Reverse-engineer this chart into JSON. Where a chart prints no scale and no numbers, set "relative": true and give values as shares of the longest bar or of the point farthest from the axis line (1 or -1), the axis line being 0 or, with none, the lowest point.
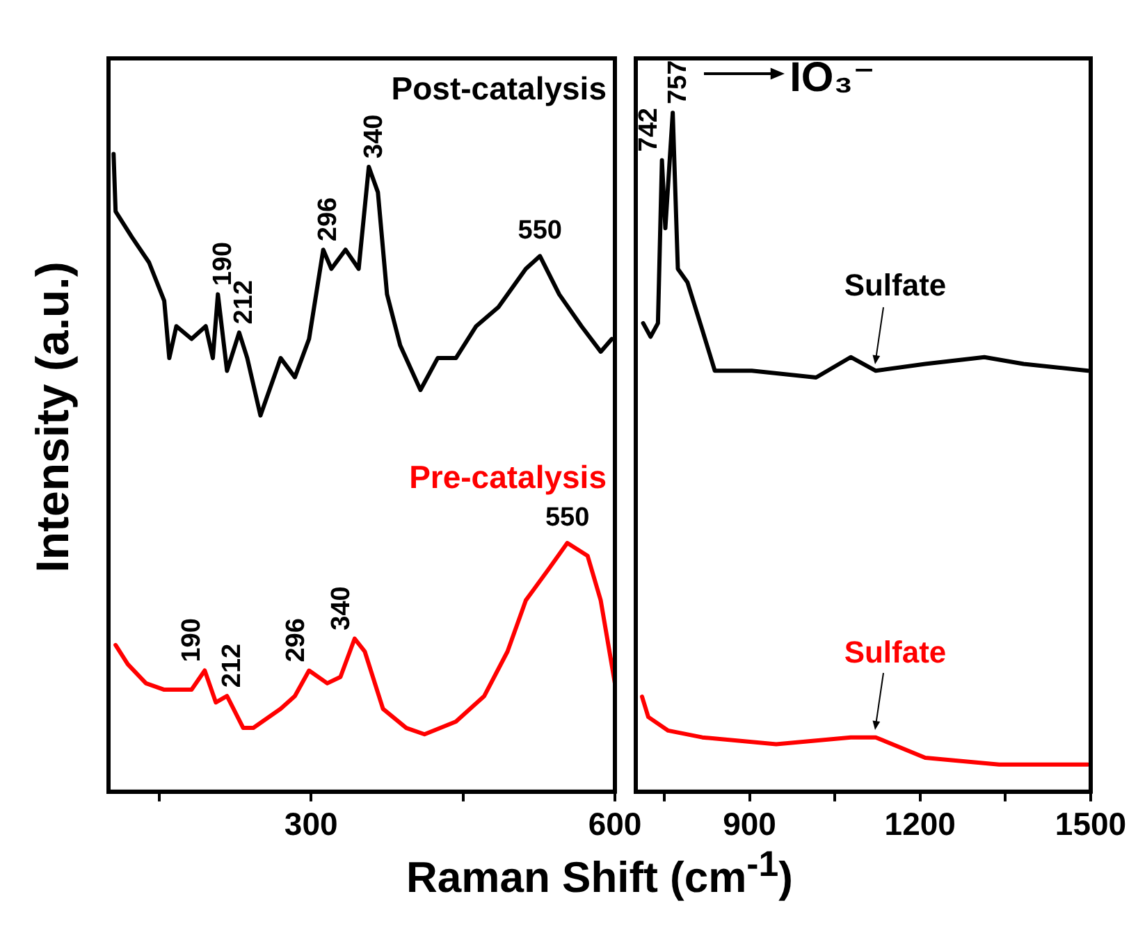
{
  "chart_data": [
    {
      "type": "line",
      "relative": true,
      "xlabel": "Raman Shift (cm$^{-1}$)",
      "ylabel": "Intensity (a.u.)",
      "xlim": [
        100,
        600
      ],
      "xticks": [
        {
          "value": 150,
          "label": null
        },
        300,
        {
          "value": 450,
          "label": null
        },
        600
      ],
      "series": [
        {
          "name": "Post-catalysis",
          "color": "#000000",
          "x": [
            105,
            107,
            123,
            140,
            155,
            160,
            167,
            182,
            196,
            203,
            208,
            217,
            229,
            237,
            250,
            270,
            284,
            298,
            312,
            320,
            334,
            347,
            357,
            366,
            375,
            388,
            408,
            425,
            443,
            463,
            485,
            512,
            526,
            545,
            567,
            586,
            597
          ],
          "values": [
            1.0,
            0.91,
            0.87,
            0.83,
            0.77,
            0.68,
            0.73,
            0.71,
            0.73,
            0.68,
            0.78,
            0.66,
            0.72,
            0.68,
            0.59,
            0.68,
            0.65,
            0.71,
            0.85,
            0.82,
            0.85,
            0.82,
            0.98,
            0.94,
            0.78,
            0.7,
            0.63,
            0.68,
            0.68,
            0.73,
            0.76,
            0.82,
            0.84,
            0.78,
            0.73,
            0.69,
            0.71
          ]
        },
        {
          "name": "Pre-catalysis",
          "color": "#ff0000",
          "x": [
            107,
            119,
            137,
            155,
            182,
            195,
            206,
            217,
            233,
            243,
            270,
            284,
            298,
            316,
            329,
            343,
            353,
            371,
            394,
            412,
            443,
            471,
            494,
            512,
            535,
            553,
            573,
            586,
            600
          ],
          "values": [
            0.23,
            0.2,
            0.17,
            0.16,
            0.16,
            0.19,
            0.14,
            0.15,
            0.1,
            0.1,
            0.13,
            0.15,
            0.19,
            0.17,
            0.18,
            0.24,
            0.22,
            0.13,
            0.1,
            0.09,
            0.11,
            0.15,
            0.22,
            0.3,
            0.35,
            0.39,
            0.37,
            0.3,
            0.17
          ]
        }
      ],
      "annotations": [
        {
          "text": "190",
          "x": 208,
          "y": 0.78
        },
        {
          "text": "212",
          "x": 229,
          "y": 0.72
        },
        {
          "text": "296",
          "x": 312,
          "y": 0.85
        },
        {
          "text": "340",
          "x": 357,
          "y": 0.98
        },
        {
          "text": "550",
          "x": 526,
          "y": 0.84
        },
        {
          "text": "190",
          "x": 195,
          "y": 0.19
        },
        {
          "text": "212",
          "x": 217,
          "y": 0.15
        },
        {
          "text": "296",
          "x": 298,
          "y": 0.19
        },
        {
          "text": "340",
          "x": 343,
          "y": 0.24
        },
        {
          "text": "550",
          "x": 553,
          "y": 0.39
        }
      ]
    },
    {
      "type": "line",
      "relative": true,
      "xlim": [
        700,
        1500
      ],
      "xticks": [
        {
          "value": 750,
          "label": null
        },
        900,
        {
          "value": 1050,
          "label": null
        },
        1200,
        {
          "value": 1350,
          "label": null
        },
        1500
      ],
      "series": [
        {
          "color": "#000000",
          "x": [
            713,
            726,
            739,
            746,
            752,
            765,
            774,
            791,
            817,
            839,
            904,
            1017,
            1078,
            1122,
            1209,
            1313,
            1382,
            1495
          ],
          "values": [
            0.69,
            0.67,
            0.69,
            0.93,
            0.83,
            1.0,
            0.77,
            0.75,
            0.68,
            0.62,
            0.62,
            0.61,
            0.64,
            0.62,
            0.63,
            0.64,
            0.63,
            0.62
          ]
        },
        {
          "color": "#ff0000",
          "x": [
            711,
            722,
            757,
            817,
            947,
            1078,
            1122,
            1209,
            1339,
            1495
          ],
          "values": [
            0.14,
            0.11,
            0.09,
            0.08,
            0.07,
            0.08,
            0.08,
            0.05,
            0.04,
            0.04
          ]
        }
      ],
      "annotations": [
        {
          "text": "742",
          "x": 746,
          "y": 0.93
        },
        {
          "text": "757",
          "x": 765,
          "y": 1.0
        },
        {
          "text": "IO₃⁻",
          "x": 765,
          "y": 1.0
        },
        {
          "text": "Sulfate",
          "x": 1122,
          "y": 0.62
        },
        {
          "text": "Sulfate",
          "x": 1122,
          "y": 0.08
        }
      ]
    }
  ]
}
